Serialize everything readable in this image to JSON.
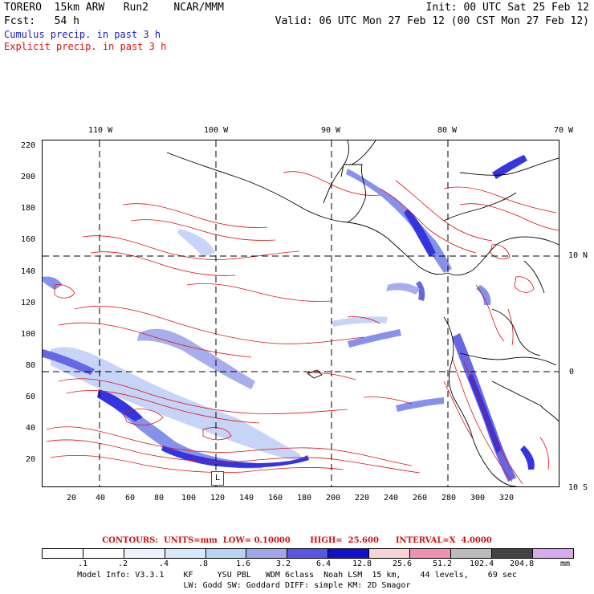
{
  "header": {
    "line1_left": "TORERO  15km ARW   Run2    NCAR/MMM",
    "line1_right": "Init: 00 UTC Sat 25 Feb 12",
    "line2_left": "Fcst:   54 h",
    "line2_right": "Valid: 06 UTC Mon 27 Feb 12 (00 CST Mon 27 Feb 12)",
    "line3": "Cumulus precip. in past 3 h",
    "line4": "Explicit precip. in past 3 h"
  },
  "map": {
    "lon_labels": [
      "110 W",
      "100 W",
      "90 W",
      "80 W",
      "70 W"
    ],
    "lat_labels": [
      "10 N",
      "0",
      "10 S"
    ],
    "y_ticks": [
      "220",
      "200",
      "180",
      "160",
      "140",
      "120",
      "100",
      "80",
      "60",
      "40",
      "20"
    ],
    "x_ticks": [
      "20",
      "40",
      "60",
      "80",
      "100",
      "120",
      "140",
      "160",
      "180",
      "200",
      "220",
      "240",
      "260",
      "280",
      "300",
      "320"
    ],
    "box_label": "L",
    "colors": {
      "coast": "#000000",
      "explicit": "#dd1111",
      "cumulus_light": "#c0d0f8",
      "cumulus_mid": "#7a86ea",
      "cumulus_dark": "#2020dd"
    }
  },
  "contours": {
    "text": "CONTOURS:  UNITS=mm  LOW= 0.10000       HIGH=  25.600      INTERVAL=X  4.0000"
  },
  "colorbar": {
    "colors": [
      "#ffffff",
      "#ffffff",
      "#eef2ff",
      "#d4e9f9",
      "#b9d3f3",
      "#9fa6e9",
      "#5757e3",
      "#1111cc",
      "#f4d4d4",
      "#f090b0",
      "#bbbbbb",
      "#444444",
      "#d8a8f0"
    ],
    "labels": [
      ".1",
      ".2",
      ".4",
      ".8",
      "1.6",
      "3.2",
      "6.4",
      "12.8",
      "25.6",
      "51.2",
      "102.4",
      "204.8"
    ],
    "units": "mm"
  },
  "footer": {
    "line1": "Model Info: V3.3.1    KF     YSU PBL   WDM 6class  Noah LSM  15 km,    44 levels,    69 sec",
    "line2": "LW: Godd SW: Goddard DIFF: simple KM: 2D Smagor"
  }
}
